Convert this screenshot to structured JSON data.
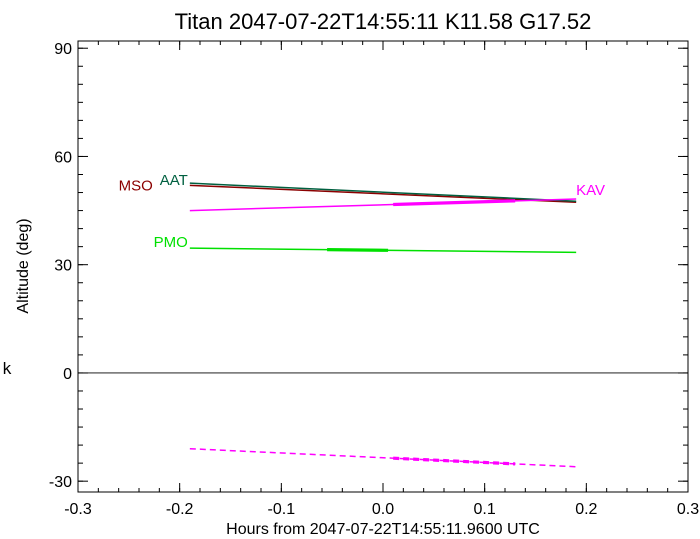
{
  "chart_data": {
    "type": "line",
    "title": "Titan 2047-07-22T14:55:11   K11.58   G17.52",
    "xlabel": "Hours from 2047-07-22T14:55:11.9600 UTC",
    "ylabel": "Altitude (deg)",
    "side_label": "k",
    "xlim": [
      -0.3,
      0.3
    ],
    "ylim": [
      -33,
      92
    ],
    "x_ticks": [
      -0.3,
      -0.2,
      -0.1,
      0.0,
      0.1,
      0.2,
      0.3
    ],
    "x_tick_labels": [
      "-0.3",
      "-0.2",
      "-0.1",
      "0.0",
      "0.1",
      "0.2",
      "0.3"
    ],
    "y_ticks": [
      -30,
      0,
      30,
      60,
      90
    ],
    "y_tick_labels": [
      "-30",
      "0",
      "30",
      "60",
      "90"
    ],
    "zero_line": 0,
    "series": [
      {
        "name": "MSO",
        "color": "#8b0000",
        "style": "solid",
        "x": [
          -0.19,
          0.19
        ],
        "y": [
          52.0,
          47.3
        ],
        "highlight": []
      },
      {
        "name": "AAT",
        "color": "#006040",
        "style": "solid",
        "x": [
          -0.19,
          0.19
        ],
        "y": [
          52.6,
          47.6
        ],
        "highlight": []
      },
      {
        "name": "KAV",
        "color": "#ff00ff",
        "style": "solid",
        "x": [
          -0.19,
          0.19
        ],
        "y": [
          45.0,
          48.2
        ],
        "highlight": [
          0.01,
          0.13
        ]
      },
      {
        "name": "PMO",
        "color": "#00e000",
        "style": "solid",
        "x": [
          -0.19,
          0.19
        ],
        "y": [
          34.6,
          33.4
        ],
        "highlight": [
          -0.055,
          0.005
        ]
      },
      {
        "name": "",
        "color": "#ff00ff",
        "style": "dashed",
        "x": [
          -0.19,
          0.19
        ],
        "y": [
          -21.0,
          -26.0
        ],
        "highlight": [
          0.01,
          0.13
        ]
      }
    ]
  }
}
